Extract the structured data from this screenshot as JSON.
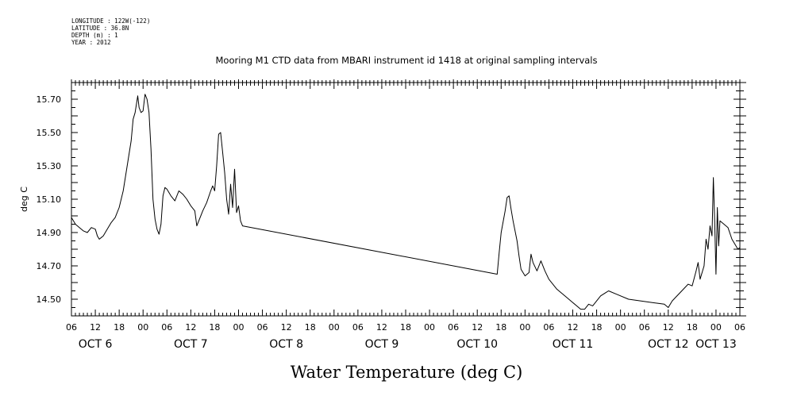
{
  "header": {
    "longitude": "LONGITUDE : 122W(-122)",
    "latitude": "LATITUDE : 36.8N",
    "depth": "DEPTH (m) : 1",
    "year": "YEAR : 2012"
  },
  "chart_data": {
    "type": "line",
    "title": "Mooring M1 CTD data from MBARI instrument id 1418 at original sampling intervals",
    "xlabel": "Water Temperature (deg C)",
    "ylabel": "deg C",
    "xlim": [
      "2012-10-06T06:00",
      "2012-10-13T06:00"
    ],
    "ylim": [
      14.4,
      15.8
    ],
    "yticks": [
      "14.50",
      "14.70",
      "14.90",
      "15.10",
      "15.30",
      "15.50",
      "15.70"
    ],
    "hour_tick_labels": [
      "06",
      "12",
      "18",
      "00"
    ],
    "day_labels": [
      {
        "label": "OCT  6",
        "date": "2012-10-06T12:00"
      },
      {
        "label": "OCT  7",
        "date": "2012-10-07T12:00"
      },
      {
        "label": "OCT  8",
        "date": "2012-10-08T12:00"
      },
      {
        "label": "OCT  9",
        "date": "2012-10-09T12:00"
      },
      {
        "label": "OCT 10",
        "date": "2012-10-10T12:00"
      },
      {
        "label": "OCT 11",
        "date": "2012-10-11T12:00"
      },
      {
        "label": "OCT 12",
        "date": "2012-10-12T12:00"
      },
      {
        "label": "OCT 13",
        "date": "2012-10-13T00:00"
      }
    ],
    "grid": false,
    "series": [
      {
        "color": "#000000",
        "points": [
          [
            "2012-10-06T06:00",
            14.99
          ],
          [
            "2012-10-06T06:30",
            14.97
          ],
          [
            "2012-10-06T07:00",
            14.95
          ],
          [
            "2012-10-06T08:00",
            14.93
          ],
          [
            "2012-10-06T09:00",
            14.91
          ],
          [
            "2012-10-06T10:00",
            14.9
          ],
          [
            "2012-10-06T11:00",
            14.93
          ],
          [
            "2012-10-06T12:00",
            14.92
          ],
          [
            "2012-10-06T12:30",
            14.88
          ],
          [
            "2012-10-06T13:00",
            14.86
          ],
          [
            "2012-10-06T14:00",
            14.88
          ],
          [
            "2012-10-06T15:00",
            14.92
          ],
          [
            "2012-10-06T16:00",
            14.96
          ],
          [
            "2012-10-06T17:00",
            14.99
          ],
          [
            "2012-10-06T18:00",
            15.05
          ],
          [
            "2012-10-06T19:00",
            15.15
          ],
          [
            "2012-10-06T20:00",
            15.3
          ],
          [
            "2012-10-06T21:00",
            15.45
          ],
          [
            "2012-10-06T21:30",
            15.58
          ],
          [
            "2012-10-06T22:00",
            15.62
          ],
          [
            "2012-10-06T22:40",
            15.72
          ],
          [
            "2012-10-06T23:00",
            15.65
          ],
          [
            "2012-10-06T23:30",
            15.62
          ],
          [
            "2012-10-07T00:00",
            15.63
          ],
          [
            "2012-10-07T00:30",
            15.73
          ],
          [
            "2012-10-07T01:00",
            15.7
          ],
          [
            "2012-10-07T01:30",
            15.62
          ],
          [
            "2012-10-07T02:00",
            15.4
          ],
          [
            "2012-10-07T02:30",
            15.1
          ],
          [
            "2012-10-07T03:00",
            14.98
          ],
          [
            "2012-10-07T03:30",
            14.92
          ],
          [
            "2012-10-07T04:00",
            14.89
          ],
          [
            "2012-10-07T04:30",
            14.95
          ],
          [
            "2012-10-07T05:00",
            15.12
          ],
          [
            "2012-10-07T05:30",
            15.17
          ],
          [
            "2012-10-07T06:00",
            15.16
          ],
          [
            "2012-10-07T07:00",
            15.12
          ],
          [
            "2012-10-07T08:00",
            15.09
          ],
          [
            "2012-10-07T09:00",
            15.15
          ],
          [
            "2012-10-07T10:00",
            15.13
          ],
          [
            "2012-10-07T11:00",
            15.1
          ],
          [
            "2012-10-07T12:00",
            15.06
          ],
          [
            "2012-10-07T13:00",
            15.03
          ],
          [
            "2012-10-07T13:30",
            14.94
          ],
          [
            "2012-10-07T14:00",
            14.97
          ],
          [
            "2012-10-07T15:00",
            15.03
          ],
          [
            "2012-10-07T16:00",
            15.08
          ],
          [
            "2012-10-07T17:00",
            15.15
          ],
          [
            "2012-10-07T17:30",
            15.18
          ],
          [
            "2012-10-07T18:00",
            15.15
          ],
          [
            "2012-10-07T18:30",
            15.3
          ],
          [
            "2012-10-07T19:00",
            15.49
          ],
          [
            "2012-10-07T19:30",
            15.5
          ],
          [
            "2012-10-07T20:00",
            15.38
          ],
          [
            "2012-10-07T20:30",
            15.26
          ],
          [
            "2012-10-07T21:00",
            15.1
          ],
          [
            "2012-10-07T21:30",
            15.01
          ],
          [
            "2012-10-07T22:00",
            15.19
          ],
          [
            "2012-10-07T22:30",
            15.05
          ],
          [
            "2012-10-07T23:00",
            15.28
          ],
          [
            "2012-10-07T23:30",
            15.02
          ],
          [
            "2012-10-08T00:00",
            15.06
          ],
          [
            "2012-10-08T00:30",
            14.97
          ],
          [
            "2012-10-08T01:00",
            14.94
          ],
          [
            "2012-10-10T17:00",
            14.65
          ],
          [
            "2012-10-10T17:30",
            14.78
          ],
          [
            "2012-10-10T18:00",
            14.9
          ],
          [
            "2012-10-10T19:00",
            15.03
          ],
          [
            "2012-10-10T19:30",
            15.11
          ],
          [
            "2012-10-10T20:00",
            15.12
          ],
          [
            "2012-10-10T20:30",
            15.04
          ],
          [
            "2012-10-10T21:00",
            14.97
          ],
          [
            "2012-10-10T22:00",
            14.85
          ],
          [
            "2012-10-10T22:30",
            14.76
          ],
          [
            "2012-10-10T23:00",
            14.68
          ],
          [
            "2012-10-11T00:00",
            14.64
          ],
          [
            "2012-10-11T01:00",
            14.66
          ],
          [
            "2012-10-11T01:30",
            14.77
          ],
          [
            "2012-10-11T02:00",
            14.72
          ],
          [
            "2012-10-11T03:00",
            14.67
          ],
          [
            "2012-10-11T04:00",
            14.73
          ],
          [
            "2012-10-11T05:00",
            14.67
          ],
          [
            "2012-10-11T06:00",
            14.62
          ],
          [
            "2012-10-11T08:00",
            14.56
          ],
          [
            "2012-10-11T10:00",
            14.52
          ],
          [
            "2012-10-11T12:00",
            14.48
          ],
          [
            "2012-10-11T14:00",
            14.44
          ],
          [
            "2012-10-11T15:00",
            14.44
          ],
          [
            "2012-10-11T16:00",
            14.47
          ],
          [
            "2012-10-11T17:00",
            14.46
          ],
          [
            "2012-10-11T19:00",
            14.52
          ],
          [
            "2012-10-11T21:00",
            14.55
          ],
          [
            "2012-10-11T23:00",
            14.53
          ],
          [
            "2012-10-12T02:00",
            14.5
          ],
          [
            "2012-10-12T05:00",
            14.49
          ],
          [
            "2012-10-12T08:00",
            14.48
          ],
          [
            "2012-10-12T11:00",
            14.47
          ],
          [
            "2012-10-12T12:00",
            14.45
          ],
          [
            "2012-10-12T13:00",
            14.49
          ],
          [
            "2012-10-12T15:00",
            14.54
          ],
          [
            "2012-10-12T17:00",
            14.59
          ],
          [
            "2012-10-12T18:00",
            14.58
          ],
          [
            "2012-10-12T19:00",
            14.67
          ],
          [
            "2012-10-12T19:30",
            14.72
          ],
          [
            "2012-10-12T20:00",
            14.62
          ],
          [
            "2012-10-12T21:00",
            14.7
          ],
          [
            "2012-10-12T21:30",
            14.86
          ],
          [
            "2012-10-12T22:00",
            14.8
          ],
          [
            "2012-10-12T22:30",
            14.94
          ],
          [
            "2012-10-12T23:00",
            14.88
          ],
          [
            "2012-10-12T23:20",
            15.23
          ],
          [
            "2012-10-12T23:40",
            14.96
          ],
          [
            "2012-10-13T00:00",
            14.65
          ],
          [
            "2012-10-13T00:20",
            15.05
          ],
          [
            "2012-10-13T00:40",
            14.82
          ],
          [
            "2012-10-13T01:00",
            14.97
          ],
          [
            "2012-10-13T02:00",
            14.95
          ],
          [
            "2012-10-13T03:00",
            14.93
          ],
          [
            "2012-10-13T04:00",
            14.86
          ],
          [
            "2012-10-13T05:00",
            14.82
          ],
          [
            "2012-10-13T05:30",
            14.8
          ],
          [
            "2012-10-13T06:00",
            14.81
          ]
        ]
      }
    ]
  }
}
